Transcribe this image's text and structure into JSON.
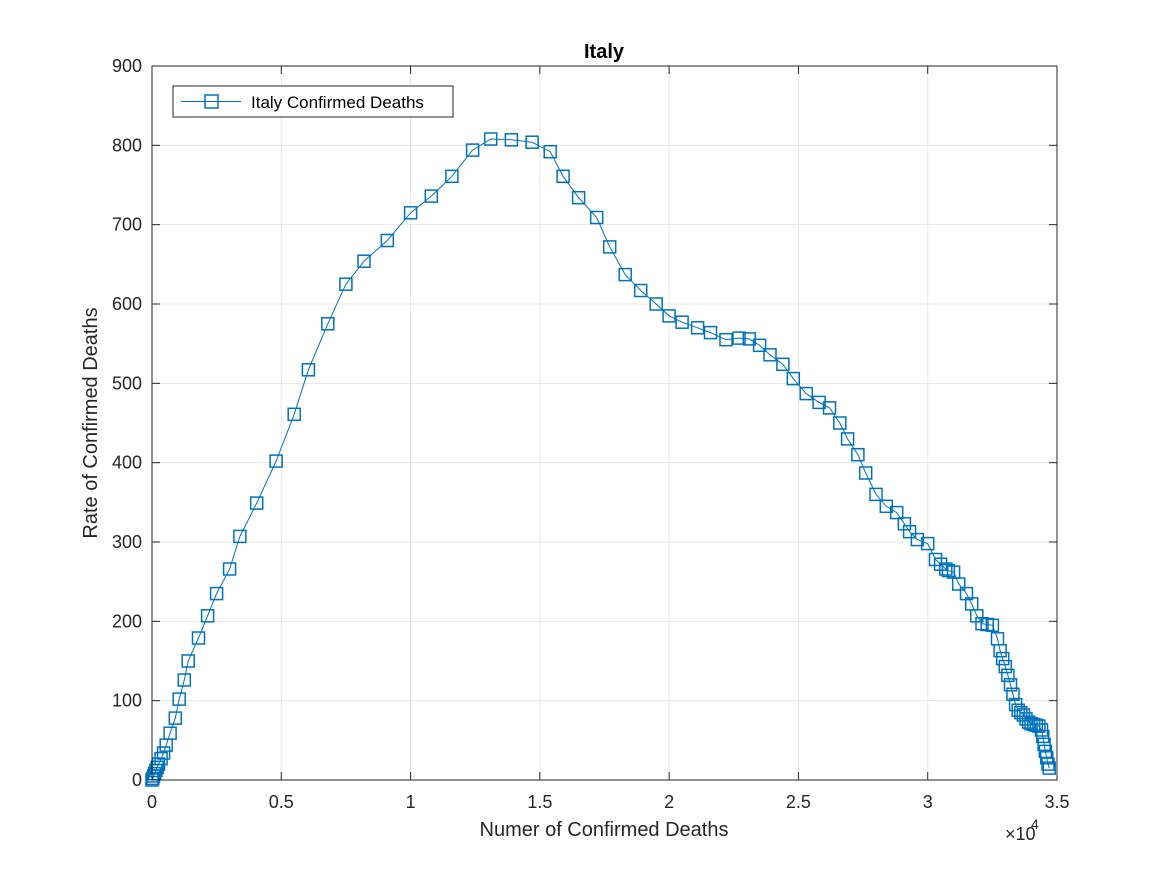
{
  "chart_data": {
    "type": "line",
    "title": "Italy",
    "xlabel": "Numer of Confirmed Deaths",
    "ylabel": "Rate of Confirmed Deaths",
    "xlim": [
      0,
      35000
    ],
    "ylim": [
      0,
      900
    ],
    "x_ticks": [
      0,
      5000,
      10000,
      15000,
      20000,
      25000,
      30000,
      35000
    ],
    "x_tick_labels": [
      "0",
      "0.5",
      "1",
      "1.5",
      "2",
      "2.5",
      "3",
      "3.5"
    ],
    "x_exponent_label": "×10",
    "x_exponent_power": "4",
    "y_ticks": [
      0,
      100,
      200,
      300,
      400,
      500,
      600,
      700,
      800,
      900
    ],
    "y_tick_labels": [
      "0",
      "100",
      "200",
      "300",
      "400",
      "500",
      "600",
      "700",
      "800",
      "900"
    ],
    "grid": true,
    "legend_position": "top-left",
    "marker": "square",
    "colors": {
      "series": "#0072BD",
      "axis": "#262626",
      "grid": "#e6e6e6"
    },
    "series": [
      {
        "name": "Italy Confirmed Deaths",
        "x": [
          0,
          30,
          60,
          100,
          150,
          200,
          250,
          350,
          450,
          550,
          700,
          900,
          1050,
          1250,
          1400,
          1800,
          2150,
          2500,
          3000,
          3400,
          4050,
          4800,
          5500,
          6050,
          6800,
          7500,
          8200,
          9100,
          10000,
          10800,
          11600,
          12400,
          13100,
          13900,
          14700,
          15400,
          15900,
          16500,
          17200,
          17700,
          18300,
          18900,
          19500,
          20000,
          20500,
          21100,
          21600,
          22200,
          22700,
          23100,
          23500,
          23900,
          24400,
          24800,
          25300,
          25800,
          26200,
          26600,
          26900,
          27300,
          27600,
          28000,
          28400,
          28800,
          29100,
          29300,
          29600,
          30000,
          30300,
          30500,
          30700,
          30800,
          31000,
          31200,
          31500,
          31700,
          31900,
          32100,
          32300,
          32500,
          32700,
          32800,
          32900,
          33000,
          33100,
          33200,
          33300,
          33400,
          33500,
          33600,
          33700,
          33800,
          33900,
          34000,
          34100,
          34200,
          34300,
          34400,
          34450,
          34500,
          34550,
          34600,
          34650,
          34700
        ],
        "y": [
          0,
          2,
          5,
          8,
          12,
          16,
          20,
          27,
          34,
          44,
          59,
          78,
          102,
          126,
          150,
          179,
          207,
          235,
          266,
          307,
          349,
          402,
          461,
          517,
          575,
          625,
          654,
          680,
          715,
          736,
          761,
          794,
          808,
          807,
          804,
          792,
          761,
          734,
          709,
          672,
          637,
          617,
          600,
          585,
          577,
          570,
          564,
          555,
          557,
          556,
          548,
          536,
          524,
          506,
          487,
          476,
          469,
          450,
          430,
          410,
          387,
          360,
          345,
          337,
          323,
          313,
          303,
          298,
          278,
          272,
          266,
          264,
          262,
          247,
          235,
          222,
          207,
          197,
          196,
          195,
          178,
          163,
          153,
          143,
          132,
          120,
          108,
          95,
          88,
          85,
          82,
          77,
          73,
          71,
          70,
          69,
          68,
          63,
          55,
          45,
          36,
          28,
          20,
          15
        ]
      }
    ]
  }
}
